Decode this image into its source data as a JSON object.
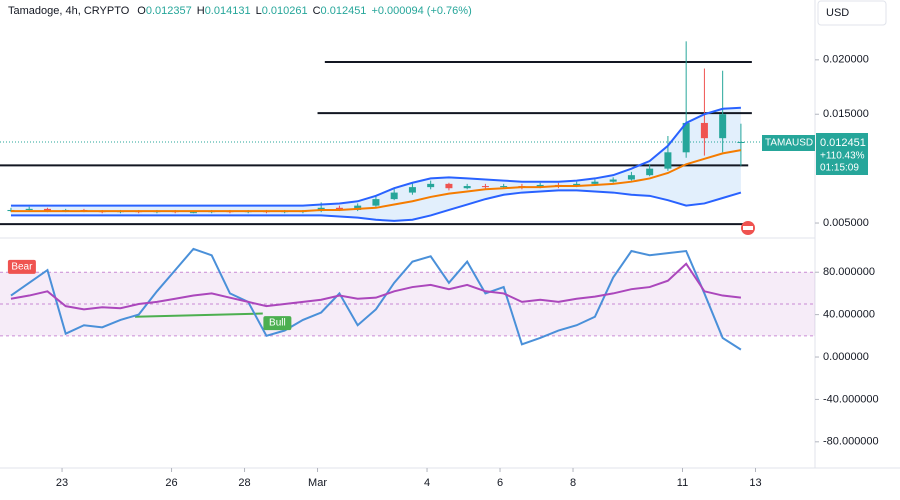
{
  "header": {
    "symbol": "Tamadoge, 4h, CRYPTO",
    "ohlc": [
      {
        "label": "O",
        "value": "0.012357"
      },
      {
        "label": "H",
        "value": "0.014131"
      },
      {
        "label": "L",
        "value": "0.010261"
      },
      {
        "label": "C",
        "value": "0.012451"
      }
    ],
    "change": "+0.000094 (+0.76%)",
    "currency": "USD"
  },
  "price_label": {
    "symbol": "TAMAUSD",
    "price": "0.012451",
    "change": "+110.43%",
    "countdown": "01:15:09"
  },
  "chart_data": [
    {
      "type": "candlestick",
      "up_color": "#26a69a",
      "down_color": "#ef5350",
      "xlim": [
        -1.7,
        20.63
      ],
      "xticks": [
        {
          "value": 0,
          "label": "23"
        },
        {
          "value": 3,
          "label": "26"
        },
        {
          "value": 5,
          "label": "28"
        },
        {
          "value": 7,
          "label": "Mar"
        },
        {
          "value": 10,
          "label": "4"
        },
        {
          "value": 12,
          "label": "6"
        },
        {
          "value": 14,
          "label": "8"
        },
        {
          "value": 17,
          "label": "11"
        },
        {
          "value": 19,
          "label": "13"
        }
      ],
      "ylim": [
        0.0039,
        0.0255
      ],
      "yticks": [
        {
          "value": 0.02,
          "label": "0.020000"
        },
        {
          "value": 0.015,
          "label": "0.015000"
        },
        {
          "value": 0.005,
          "label": "0.005000"
        }
      ],
      "last_price": 0.012451,
      "candles": {
        "t": [
          -1.4,
          -0.9,
          -0.4,
          0.1,
          0.6,
          1.1,
          1.6,
          2.1,
          2.6,
          3.1,
          3.6,
          4.1,
          4.6,
          5.1,
          5.6,
          6.1,
          6.6,
          7.1,
          7.6,
          8.1,
          8.6,
          9.1,
          9.6,
          10.1,
          10.6,
          11.1,
          11.6,
          12.1,
          12.6,
          13.1,
          13.6,
          14.1,
          14.6,
          15.1,
          15.6,
          16.1,
          16.6,
          17.1,
          17.6,
          18.1,
          18.6
        ],
        "open": [
          0.0061,
          0.0062,
          0.0063,
          0.0061,
          0.0062,
          0.0061,
          0.006,
          0.0061,
          0.006,
          0.0061,
          0.006,
          0.006,
          0.0061,
          0.006,
          0.0061,
          0.006,
          0.0061,
          0.0061,
          0.0064,
          0.0062,
          0.0066,
          0.0072,
          0.0078,
          0.0083,
          0.0086,
          0.0082,
          0.0084,
          0.0083,
          0.0084,
          0.0083,
          0.0085,
          0.0084,
          0.0086,
          0.0088,
          0.009,
          0.0094,
          0.01,
          0.0115,
          0.0142,
          0.0128,
          0.012357
        ],
        "high": [
          0.0064,
          0.0065,
          0.0064,
          0.0063,
          0.0063,
          0.0062,
          0.0062,
          0.0062,
          0.0062,
          0.0062,
          0.0061,
          0.0062,
          0.0062,
          0.0062,
          0.0062,
          0.0062,
          0.0062,
          0.0069,
          0.0066,
          0.0068,
          0.0075,
          0.0082,
          0.0087,
          0.0089,
          0.0087,
          0.0086,
          0.0086,
          0.0086,
          0.0086,
          0.0087,
          0.0087,
          0.0088,
          0.009,
          0.0092,
          0.0097,
          0.0104,
          0.013,
          0.0217,
          0.0192,
          0.019,
          0.014131
        ],
        "low": [
          0.006,
          0.0061,
          0.006,
          0.006,
          0.006,
          0.0059,
          0.0059,
          0.0059,
          0.0059,
          0.0059,
          0.0059,
          0.0059,
          0.0059,
          0.0059,
          0.0059,
          0.0059,
          0.0059,
          0.006,
          0.0061,
          0.0061,
          0.0065,
          0.0071,
          0.0076,
          0.0081,
          0.008,
          0.0081,
          0.0081,
          0.0082,
          0.0081,
          0.0082,
          0.0082,
          0.0083,
          0.0085,
          0.0087,
          0.0089,
          0.0093,
          0.0098,
          0.011,
          0.0112,
          0.0115,
          0.010261
        ],
        "close": [
          0.0062,
          0.0063,
          0.0061,
          0.0062,
          0.0061,
          0.006,
          0.0061,
          0.006,
          0.0061,
          0.006,
          0.006,
          0.0061,
          0.006,
          0.0061,
          0.006,
          0.0061,
          0.0061,
          0.0064,
          0.0062,
          0.0066,
          0.0072,
          0.0078,
          0.0083,
          0.0086,
          0.0082,
          0.0084,
          0.0083,
          0.0084,
          0.0083,
          0.0085,
          0.0084,
          0.0086,
          0.0088,
          0.009,
          0.0094,
          0.01,
          0.0115,
          0.0142,
          0.0128,
          0.015,
          0.012451
        ]
      },
      "bollinger": {
        "color": "#2962ff",
        "mid_color": "#f57c00",
        "fill": "#d6e8fb",
        "upper": [
          0.0066,
          0.0066,
          0.0066,
          0.0066,
          0.0066,
          0.0066,
          0.0066,
          0.0066,
          0.0066,
          0.0066,
          0.0066,
          0.0066,
          0.0066,
          0.0066,
          0.0066,
          0.0066,
          0.0066,
          0.0067,
          0.0068,
          0.007,
          0.0075,
          0.0082,
          0.0087,
          0.0091,
          0.0092,
          0.0091,
          0.009,
          0.0089,
          0.0088,
          0.0088,
          0.0088,
          0.0089,
          0.0091,
          0.0094,
          0.01,
          0.0107,
          0.0121,
          0.0142,
          0.015,
          0.0155,
          0.0156
        ],
        "mid": [
          0.0061,
          0.0061,
          0.0061,
          0.0061,
          0.0061,
          0.0061,
          0.0061,
          0.0061,
          0.0061,
          0.0061,
          0.0061,
          0.0061,
          0.0061,
          0.0061,
          0.0061,
          0.0061,
          0.0061,
          0.0062,
          0.0062,
          0.0063,
          0.0064,
          0.0067,
          0.007,
          0.0074,
          0.0077,
          0.0079,
          0.0081,
          0.0082,
          0.0083,
          0.0083,
          0.0084,
          0.0084,
          0.0085,
          0.0086,
          0.0088,
          0.0091,
          0.0096,
          0.0104,
          0.0109,
          0.0114,
          0.0117
        ],
        "lower": [
          0.0057,
          0.0057,
          0.0057,
          0.0057,
          0.0057,
          0.0057,
          0.0057,
          0.0057,
          0.0057,
          0.0057,
          0.0057,
          0.0057,
          0.0057,
          0.0057,
          0.0057,
          0.0057,
          0.0057,
          0.0057,
          0.0056,
          0.0055,
          0.0053,
          0.0052,
          0.0053,
          0.0057,
          0.0062,
          0.0067,
          0.0072,
          0.0076,
          0.0078,
          0.0079,
          0.008,
          0.008,
          0.0079,
          0.0078,
          0.0076,
          0.0075,
          0.0071,
          0.0066,
          0.0068,
          0.0073,
          0.0078
        ]
      },
      "levels": [
        {
          "value": 0.0198,
          "x": [
            7.2,
            18.9
          ]
        },
        {
          "value": 0.0151,
          "x": [
            7.0,
            18.9
          ]
        },
        {
          "value": 0.0103,
          "x": [
            -1.7,
            18.8
          ]
        },
        {
          "value": 0.0049,
          "x": [
            -1.7,
            18.8
          ]
        }
      ]
    },
    {
      "type": "line",
      "xlim": [
        -1.7,
        20.63
      ],
      "ylim": [
        -104.7,
        110.4
      ],
      "yticks": [
        {
          "value": 80,
          "label": "80.000000"
        },
        {
          "value": 40,
          "label": "40.000000"
        },
        {
          "value": 0,
          "label": "0.000000"
        },
        {
          "value": -40,
          "label": "-40.000000"
        },
        {
          "value": -80,
          "label": "-80.000000"
        }
      ],
      "band": [
        20,
        80
      ],
      "midline": 50,
      "x": [
        -1.4,
        -0.9,
        -0.4,
        0.1,
        0.6,
        1.1,
        1.6,
        2.1,
        2.6,
        3.1,
        3.6,
        4.1,
        4.6,
        5.1,
        5.6,
        6.1,
        6.6,
        7.1,
        7.6,
        8.1,
        8.6,
        9.1,
        9.6,
        10.1,
        10.6,
        11.1,
        11.6,
        12.1,
        12.6,
        13.1,
        13.6,
        14.1,
        14.6,
        15.1,
        15.6,
        16.1,
        16.6,
        17.1,
        17.6,
        18.1,
        18.6
      ],
      "series": [
        {
          "color": "#4a90d9",
          "values": [
            58,
            70,
            82,
            22,
            30,
            28,
            35,
            40,
            62,
            82,
            102,
            96,
            60,
            52,
            20,
            25,
            35,
            42,
            60,
            30,
            45,
            70,
            90,
            95,
            70,
            90,
            60,
            66,
            12,
            18,
            25,
            30,
            38,
            75,
            100,
            96,
            98,
            100,
            60,
            18,
            7
          ]
        },
        {
          "color": "#ab47bc",
          "values": [
            55,
            58,
            62,
            48,
            45,
            47,
            46,
            50,
            52,
            55,
            58,
            60,
            56,
            52,
            48,
            50,
            52,
            54,
            58,
            55,
            56,
            62,
            66,
            68,
            64,
            68,
            62,
            60,
            52,
            54,
            52,
            55,
            57,
            60,
            64,
            66,
            72,
            88,
            62,
            58,
            56
          ]
        }
      ],
      "divergence": {
        "color": "#4caf50",
        "x": [
          2,
          5.5
        ],
        "y": [
          38,
          41
        ]
      },
      "signals": [
        {
          "label": "Bear",
          "x": -1.1,
          "y": 85,
          "color": "#ef5350"
        },
        {
          "label": "Bull",
          "x": 5.9,
          "y": 32,
          "color": "#4caf50"
        }
      ]
    }
  ]
}
